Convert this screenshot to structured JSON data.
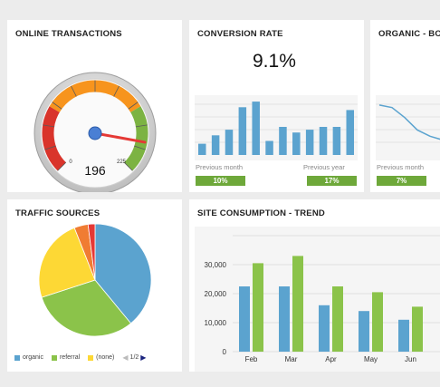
{
  "online_transactions": {
    "title": "ONLINE TRANSACTIONS",
    "value": "196",
    "min_label": "0",
    "max_label": "225",
    "gauge": {
      "min": 0,
      "max": 225,
      "value": 196
    }
  },
  "conversion_rate": {
    "title": "CONVERSION RATE",
    "value": "9.1%",
    "previous_month_label": "Previous month",
    "previous_month_value": "10%",
    "previous_year_label": "Previous year",
    "previous_year_value": "17%",
    "bars": [
      4,
      7,
      9,
      17,
      19,
      5,
      10,
      8,
      9,
      10,
      10,
      16
    ],
    "bar_color": "#5ba3cf"
  },
  "organic": {
    "title": "ORGANIC - BO",
    "previous_month_label": "Previous month",
    "previous_month_value": "7%",
    "line": [
      40,
      38,
      30,
      20,
      15,
      12
    ]
  },
  "traffic_sources": {
    "title": "TRAFFIC SOURCES",
    "legend": [
      {
        "label": "organic",
        "color": "#5ba3cf"
      },
      {
        "label": "referral",
        "color": "#8bc34a"
      },
      {
        "label": "(none)",
        "color": "#fdd835"
      }
    ],
    "pager": "1/2",
    "slices": [
      {
        "name": "organic",
        "value": 39,
        "color": "#5ba3cf"
      },
      {
        "name": "referral",
        "value": 31,
        "color": "#8bc34a"
      },
      {
        "name": "(none)",
        "value": 24,
        "color": "#fdd835"
      },
      {
        "name": "",
        "value": 4,
        "color": "#f07c32"
      },
      {
        "name": "",
        "value": 2,
        "color": "#e53935"
      }
    ]
  },
  "site_consumption": {
    "title": "SITE CONSUMPTION - TREND"
  },
  "chart_data": {
    "type": "bar",
    "title": "SITE CONSUMPTION - TREND",
    "categories": [
      "Feb",
      "Mar",
      "Apr",
      "May",
      "Jun"
    ],
    "series": [
      {
        "values": [
          22500,
          22500,
          16000,
          14000,
          11000
        ],
        "color": "#5ba3cf"
      },
      {
        "values": [
          30500,
          33000,
          22500,
          20500,
          15500
        ],
        "color": "#8bc34a"
      }
    ],
    "yticks": [
      "0",
      "10,000",
      "20,000",
      "30,000"
    ],
    "ylim": [
      0,
      40000
    ],
    "grid": true
  }
}
